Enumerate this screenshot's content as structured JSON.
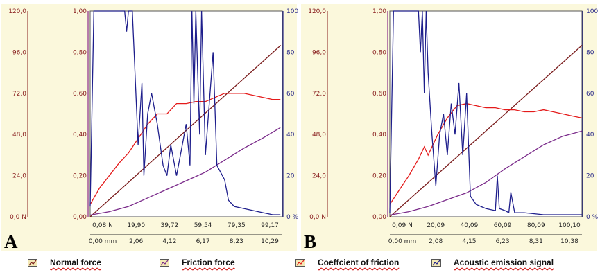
{
  "panels": [
    {
      "letter": "A",
      "left_axis_ticks": [
        "120,0",
        "96,0",
        "72,0",
        "48,0",
        "24,0",
        "0,0 N"
      ],
      "cof_axis_ticks": [
        "1,00",
        "0,80",
        "0,60",
        "0,40",
        "0,20",
        "0,00"
      ],
      "right_axis_ticks": [
        "100",
        "80",
        "60",
        "40",
        "20",
        "0 %"
      ],
      "force_ticks": [
        "0,08 N",
        "19,90",
        "39,72",
        "59,54",
        "79,35",
        "99,17"
      ],
      "distance_ticks": [
        "0,00 mm",
        "2,06",
        "4,12",
        "6,17",
        "8,23",
        "10,29"
      ]
    },
    {
      "letter": "B",
      "left_axis_ticks": [
        "120,0",
        "96,0",
        "72,0",
        "48,0",
        "24,0",
        "0,0 N"
      ],
      "cof_axis_ticks": [
        "1,00",
        "0,80",
        "0,60",
        "0,40",
        "0,20",
        "0,00"
      ],
      "right_axis_ticks": [
        "100",
        "80",
        "60",
        "40",
        "20",
        "0 %"
      ],
      "force_ticks": [
        "0,09 N",
        "20,09",
        "40,09",
        "60,09",
        "80,09",
        "100,10"
      ],
      "distance_ticks": [
        "0,00 mm",
        "2,08",
        "4,15",
        "6,23",
        "8,31",
        "10,38"
      ]
    }
  ],
  "legend": [
    {
      "label": "Normal force",
      "color": "#7a1c1c"
    },
    {
      "label": "Friction force",
      "color": "#7a2a8a"
    },
    {
      "label": "Coeffcient of friction",
      "color": "#e41a1a"
    },
    {
      "label": "Acoustic emission signal",
      "color": "#1e1e8c"
    }
  ],
  "chart_data": [
    {
      "type": "line",
      "panel": "A",
      "x_label_ticks": [
        "0,08 N",
        "19,90",
        "39,72",
        "59,54",
        "79,35",
        "99,17"
      ],
      "xlim": [
        0.08,
        100
      ],
      "left_axis_range": [
        0,
        120
      ],
      "cof_axis_range": [
        0,
        1
      ],
      "right_axis_range": [
        0,
        100
      ],
      "series": [
        {
          "name": "Normal force",
          "axis": "left",
          "color": "#7a1c1c",
          "x": [
            0.08,
            99.17
          ],
          "values": [
            0,
            100
          ]
        },
        {
          "name": "Friction force",
          "axis": "left",
          "color": "#7a2a8a",
          "x": [
            0,
            10,
            20,
            30,
            40,
            50,
            60,
            70,
            80,
            90,
            99
          ],
          "values": [
            1,
            3,
            6,
            11,
            16,
            21,
            26,
            33,
            40,
            46,
            52
          ]
        },
        {
          "name": "Coeffcient of friction",
          "axis": "cof",
          "color": "#e41a1a",
          "x": [
            0,
            5,
            10,
            15,
            20,
            25,
            30,
            35,
            40,
            45,
            50,
            55,
            60,
            65,
            70,
            75,
            80,
            85,
            90,
            95,
            99
          ],
          "values": [
            0.06,
            0.14,
            0.2,
            0.26,
            0.31,
            0.38,
            0.45,
            0.5,
            0.5,
            0.55,
            0.55,
            0.56,
            0.56,
            0.58,
            0.6,
            0.6,
            0.6,
            0.59,
            0.58,
            0.57,
            0.57
          ]
        },
        {
          "name": "Acoustic emission signal",
          "axis": "right",
          "color": "#1e1e8c",
          "x": [
            0,
            2,
            4,
            18,
            19,
            20,
            21,
            22,
            25,
            27,
            28,
            30,
            32,
            35,
            38,
            40,
            42,
            45,
            47,
            50,
            52,
            53,
            54,
            55,
            56,
            57,
            58,
            60,
            62,
            64,
            66,
            70,
            72,
            75,
            80,
            85,
            90,
            95,
            99
          ],
          "values": [
            5,
            100,
            100,
            100,
            90,
            100,
            100,
            100,
            35,
            65,
            20,
            50,
            60,
            45,
            25,
            20,
            35,
            20,
            30,
            45,
            25,
            100,
            55,
            100,
            70,
            40,
            100,
            30,
            55,
            80,
            25,
            18,
            8,
            5,
            4,
            3,
            2,
            1,
            1
          ]
        }
      ]
    },
    {
      "type": "line",
      "panel": "B",
      "x_label_ticks": [
        "0,09 N",
        "20,09",
        "40,09",
        "60,09",
        "80,09",
        "100,10"
      ],
      "xlim": [
        0.09,
        100
      ],
      "left_axis_range": [
        0,
        120
      ],
      "cof_axis_range": [
        0,
        1
      ],
      "right_axis_range": [
        0,
        100
      ],
      "series": [
        {
          "name": "Normal force",
          "axis": "left",
          "color": "#7a1c1c",
          "x": [
            0.09,
            100.1
          ],
          "values": [
            0,
            100
          ]
        },
        {
          "name": "Friction force",
          "axis": "left",
          "color": "#7a2a8a",
          "x": [
            0,
            10,
            20,
            30,
            40,
            50,
            60,
            70,
            80,
            90,
            100
          ],
          "values": [
            1,
            3,
            6,
            10,
            14,
            20,
            28,
            35,
            42,
            47,
            50
          ]
        },
        {
          "name": "Coeffcient of friction",
          "axis": "cof",
          "color": "#e41a1a",
          "x": [
            0,
            5,
            10,
            15,
            18,
            20,
            25,
            30,
            35,
            40,
            45,
            50,
            55,
            60,
            65,
            70,
            75,
            80,
            85,
            90,
            95,
            100
          ],
          "values": [
            0.06,
            0.13,
            0.2,
            0.28,
            0.34,
            0.3,
            0.4,
            0.48,
            0.54,
            0.55,
            0.54,
            0.53,
            0.53,
            0.52,
            0.52,
            0.51,
            0.51,
            0.52,
            0.51,
            0.5,
            0.49,
            0.48
          ]
        },
        {
          "name": "Acoustic emission signal",
          "axis": "right",
          "color": "#1e1e8c",
          "x": [
            0,
            2,
            4,
            15,
            16,
            17,
            18,
            19,
            20,
            22,
            24,
            26,
            28,
            30,
            32,
            34,
            36,
            38,
            40,
            42,
            45,
            50,
            55,
            56,
            57,
            60,
            62,
            63,
            65,
            70,
            80,
            90,
            100
          ],
          "values": [
            2,
            100,
            100,
            100,
            80,
            100,
            60,
            100,
            70,
            40,
            15,
            40,
            50,
            30,
            55,
            40,
            65,
            30,
            60,
            10,
            6,
            4,
            3,
            20,
            4,
            3,
            2,
            12,
            2,
            2,
            1,
            1,
            1
          ]
        }
      ]
    }
  ]
}
